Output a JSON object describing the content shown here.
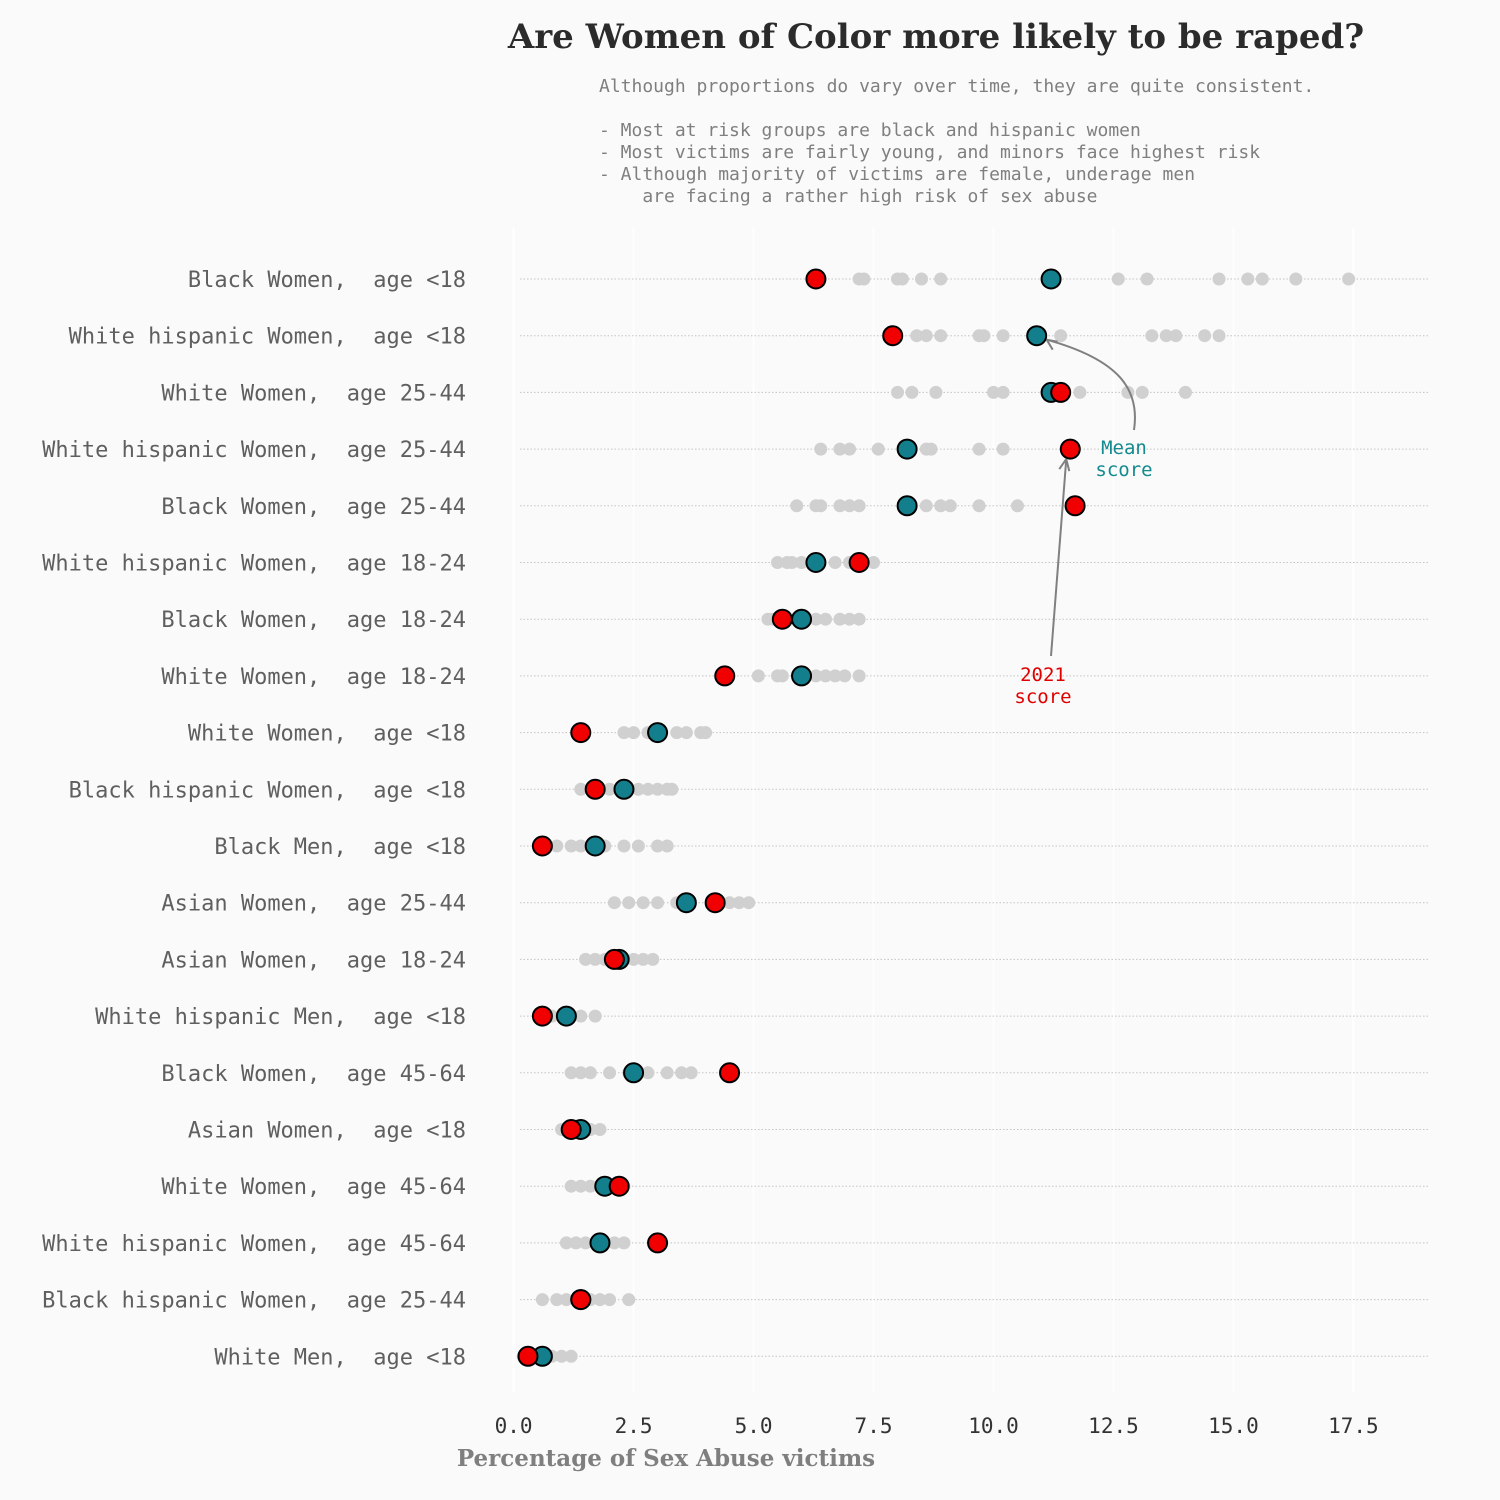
{
  "chart_data": {
    "type": "scatter",
    "title": "Are Women of Color more likely to be raped?",
    "subtitle": [
      "Although proportions do vary over time, they are quite consistent.",
      "",
      "- Most at risk groups are black and hispanic women",
      "- Most victims are fairly young, and minors face highest risk",
      "- Although majority of victims are female, underage men",
      "    are facing a rather high risk of sex abuse"
    ],
    "xlabel": "Percentage of Sex Abuse victims",
    "ylabel": "",
    "xlim": [
      -0.7,
      19.2
    ],
    "x_ticks": [
      "0.0",
      "2.5",
      "5.0",
      "7.5",
      "10.0",
      "12.5",
      "15.0",
      "17.5"
    ],
    "x_tick_values": [
      0,
      2.5,
      5,
      7.5,
      10,
      12.5,
      15,
      17.5
    ],
    "grid": "horizontal dotted per category; faint vertical",
    "legend": "none; inline annotations",
    "colors": {
      "background": "#fafafa",
      "yearly": "#d0d0d0",
      "mean": "#137f8c",
      "latest": "#f00000",
      "mean_text": "#138a8f",
      "latest_text": "#e00000",
      "arrow": "#808080"
    },
    "series": [
      {
        "key": "yearly",
        "description": "individual years"
      },
      {
        "key": "mean",
        "description": "mean score"
      },
      {
        "key": "latest",
        "description": "2021 score"
      }
    ],
    "categories": [
      {
        "label": "Black Women,  age <18",
        "mean": 11.2,
        "latest": 6.3,
        "years": [
          7.2,
          7.3,
          8.0,
          8.1,
          8.5,
          8.9,
          12.6,
          13.2,
          14.7,
          15.3,
          15.6,
          16.3,
          17.4
        ]
      },
      {
        "label": "White hispanic Women,  age <18",
        "mean": 10.9,
        "latest": 7.9,
        "years": [
          8.4,
          8.6,
          8.9,
          9.7,
          9.8,
          10.2,
          11.4,
          13.3,
          13.6,
          13.8,
          14.4,
          14.7
        ]
      },
      {
        "label": "White Women,  age 25-44",
        "mean": 11.2,
        "latest": 11.4,
        "years": [
          8.0,
          8.3,
          8.8,
          10.0,
          10.2,
          11.8,
          12.8,
          13.1,
          14.0
        ]
      },
      {
        "label": "White hispanic Women,  age 25-44",
        "mean": 8.2,
        "latest": 11.6,
        "years": [
          6.4,
          6.8,
          7.0,
          7.6,
          8.6,
          8.7,
          9.7,
          10.2
        ]
      },
      {
        "label": "Black Women,  age 25-44",
        "mean": 8.2,
        "latest": 11.7,
        "years": [
          5.9,
          6.3,
          6.4,
          6.8,
          7.0,
          7.2,
          8.6,
          8.9,
          9.1,
          9.7,
          10.5
        ]
      },
      {
        "label": "White hispanic Women,  age 18-24",
        "mean": 6.3,
        "latest": 7.2,
        "years": [
          5.5,
          5.7,
          5.8,
          6.0,
          6.7,
          7.0,
          7.5
        ]
      },
      {
        "label": "Black Women,  age 18-24",
        "mean": 6.0,
        "latest": 5.6,
        "years": [
          5.3,
          5.4,
          6.3,
          6.5,
          6.8,
          7.0,
          7.2
        ]
      },
      {
        "label": "White Women,  age 18-24",
        "mean": 6.0,
        "latest": 4.4,
        "years": [
          5.1,
          5.5,
          5.6,
          6.3,
          6.5,
          6.7,
          6.9,
          7.2
        ]
      },
      {
        "label": "White Women,  age <18",
        "mean": 3.0,
        "latest": 1.4,
        "years": [
          2.3,
          2.5,
          2.8,
          3.4,
          3.6,
          3.9,
          4.0
        ]
      },
      {
        "label": "Black hispanic Women,  age <18",
        "mean": 2.3,
        "latest": 1.7,
        "years": [
          1.4,
          1.6,
          2.0,
          2.6,
          2.8,
          3.0,
          3.2,
          3.3
        ]
      },
      {
        "label": "Black Men,  age <18",
        "mean": 1.7,
        "latest": 0.6,
        "years": [
          0.9,
          1.2,
          1.4,
          1.9,
          2.3,
          2.6,
          3.0,
          3.2
        ]
      },
      {
        "label": "Asian Women,  age 25-44",
        "mean": 3.6,
        "latest": 4.2,
        "years": [
          2.1,
          2.4,
          2.7,
          3.0,
          3.4,
          4.5,
          4.7,
          4.9
        ]
      },
      {
        "label": "Asian Women,  age 18-24",
        "mean": 2.2,
        "latest": 2.1,
        "years": [
          1.5,
          1.7,
          1.9,
          2.5,
          2.7,
          2.9
        ]
      },
      {
        "label": "White hispanic Men,  age <18",
        "mean": 1.1,
        "latest": 0.6,
        "years": [
          0.6,
          0.8,
          1.4,
          1.7
        ]
      },
      {
        "label": "Black Women,  age 45-64",
        "mean": 2.5,
        "latest": 4.5,
        "years": [
          1.2,
          1.4,
          1.6,
          2.0,
          2.4,
          2.8,
          3.2,
          3.5,
          3.7
        ]
      },
      {
        "label": "Asian Women,  age <18",
        "mean": 1.4,
        "latest": 1.2,
        "years": [
          1.0,
          1.6,
          1.8
        ]
      },
      {
        "label": "White Women,  age 45-64",
        "mean": 1.9,
        "latest": 2.2,
        "years": [
          1.2,
          1.4,
          1.6,
          2.1,
          2.3
        ]
      },
      {
        "label": "White hispanic Women,  age 45-64",
        "mean": 1.8,
        "latest": 3.0,
        "years": [
          1.1,
          1.3,
          1.5,
          2.1,
          2.3
        ]
      },
      {
        "label": "Black hispanic Women,  age 25-44",
        "mean": 1.4,
        "latest": 1.4,
        "years": [
          0.6,
          0.9,
          1.1,
          1.3,
          1.6,
          1.8,
          2.0,
          2.4
        ]
      },
      {
        "label": "White Men,  age <18",
        "mean": 0.6,
        "latest": 0.3,
        "years": [
          0.2,
          0.4,
          0.5,
          0.8,
          1.0,
          1.2
        ]
      }
    ],
    "annotations": [
      {
        "key": "mean",
        "text": [
          "Mean",
          "score"
        ],
        "target_category": 1
      },
      {
        "key": "latest",
        "text": [
          "2021",
          "score"
        ],
        "target_category": 3
      }
    ]
  }
}
